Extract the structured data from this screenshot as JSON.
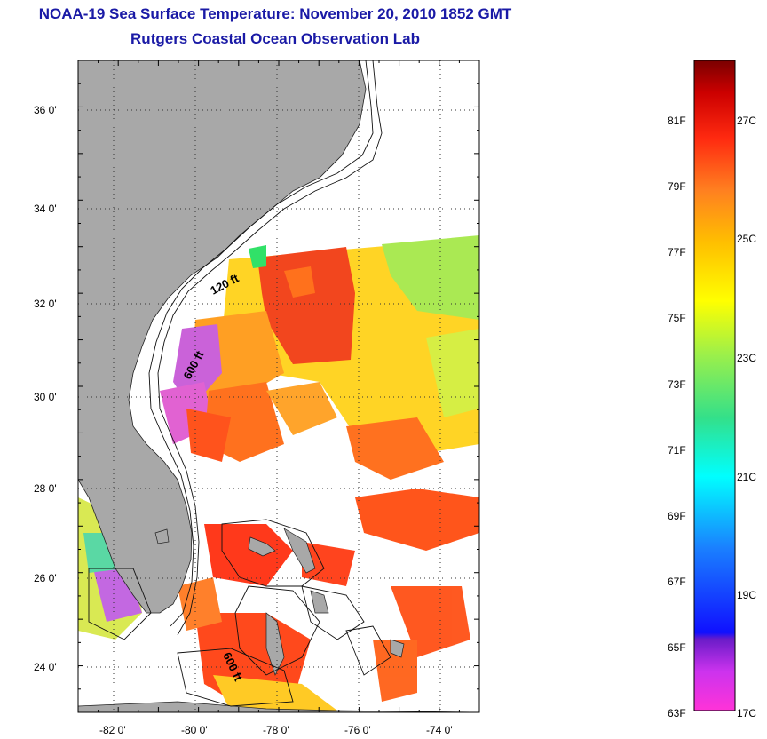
{
  "title": {
    "line1": "NOAA-19 Sea Surface Temperature:  November 20, 2010 1852 GMT",
    "line2": "Rutgers Coastal Ocean Observation Lab"
  },
  "map": {
    "lat_labels": [
      "24 0'",
      "26 0'",
      "28 0'",
      "30 0'",
      "32 0'",
      "34 0'",
      "36 0'"
    ],
    "lon_labels": [
      "-82 0'",
      "-80 0'",
      "-78 0'",
      "-76 0'",
      "-74 0'"
    ],
    "lat_values": [
      24,
      26,
      28,
      30,
      32,
      34,
      36
    ],
    "lon_values": [
      -82,
      -80,
      -78,
      -76,
      -74
    ],
    "lat_range": [
      23,
      37
    ],
    "lon_range": [
      -83,
      -73
    ],
    "contour_labels": [
      "120 ft",
      "600 ft",
      "600 ft"
    ],
    "colors": {
      "land": "#a8a8a8",
      "ocean_nodata": "#ffffff",
      "frame": "#000000"
    }
  },
  "colorbar": {
    "f_labels": [
      "81F",
      "79F",
      "77F",
      "75F",
      "73F",
      "71F",
      "69F",
      "67F",
      "65F",
      "63F"
    ],
    "c_labels": [
      "27C",
      "25C",
      "23C",
      "21C",
      "19C",
      "17C"
    ],
    "range_f": [
      63,
      83
    ]
  }
}
